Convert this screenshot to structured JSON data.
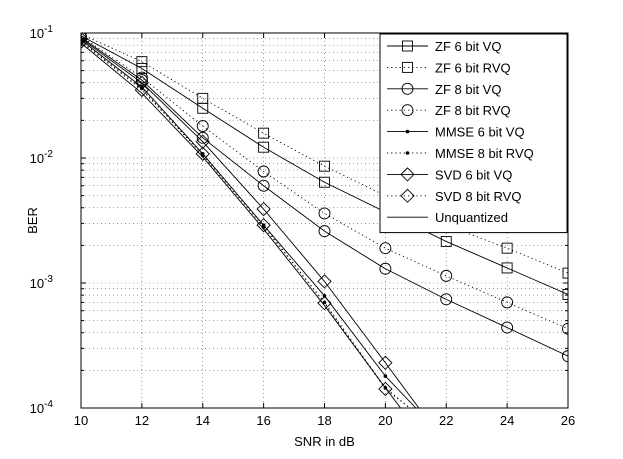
{
  "chart_data": {
    "type": "line",
    "title": "",
    "xlabel": "SNR in dB",
    "ylabel": "BER",
    "xscale": "linear",
    "yscale": "log",
    "xlim": [
      10,
      26
    ],
    "ylim": [
      0.0001,
      0.1
    ],
    "grid": true,
    "legend_position": "top-right",
    "x_ticks": [
      10,
      12,
      14,
      16,
      18,
      20,
      22,
      24,
      26
    ],
    "x_tick_labels": [
      "10",
      "12",
      "14",
      "16",
      "18",
      "20",
      "22",
      "24",
      "26"
    ],
    "y_ticks": [
      0.0001,
      0.001,
      0.01,
      0.1
    ],
    "y_tick_labels": [
      {
        "base": "10",
        "exp": "-4"
      },
      {
        "base": "10",
        "exp": "-3"
      },
      {
        "base": "10",
        "exp": "-2"
      },
      {
        "base": "10",
        "exp": "-1"
      }
    ],
    "series": [
      {
        "name": "ZF 6 bit VQ",
        "line": "solid",
        "marker": "square",
        "x": [
          10,
          12,
          14,
          16,
          18,
          20,
          22,
          24,
          26
        ],
        "y": [
          0.095,
          0.052,
          0.025,
          0.0122,
          0.0064,
          0.0037,
          0.00215,
          0.00132,
          0.00081
        ]
      },
      {
        "name": "ZF 6 bit RVQ",
        "line": "dotted",
        "marker": "square",
        "x": [
          10,
          12,
          14,
          16,
          18,
          20,
          22,
          24,
          26
        ],
        "y": [
          0.098,
          0.059,
          0.03,
          0.0158,
          0.0086,
          0.005,
          0.0029,
          0.0019,
          0.0012
        ]
      },
      {
        "name": "ZF 8 bit VQ",
        "line": "solid",
        "marker": "circle",
        "x": [
          10,
          12,
          14,
          16,
          18,
          20,
          22,
          24,
          26
        ],
        "y": [
          0.092,
          0.042,
          0.0145,
          0.006,
          0.0026,
          0.0013,
          0.00074,
          0.00044,
          0.00026
        ]
      },
      {
        "name": "ZF 8 bit RVQ",
        "line": "dotted",
        "marker": "circle",
        "x": [
          10,
          12,
          14,
          16,
          18,
          20,
          22,
          24,
          26
        ],
        "y": [
          0.094,
          0.044,
          0.018,
          0.0078,
          0.0036,
          0.0019,
          0.00114,
          0.0007,
          0.00043
        ]
      },
      {
        "name": "MMSE 6 bit VQ",
        "line": "solid",
        "marker": "dot",
        "x": [
          10,
          12,
          14,
          16,
          18,
          20,
          21
        ],
        "y": [
          0.088,
          0.037,
          0.0108,
          0.0029,
          0.00079,
          0.00018,
          0.0001
        ]
      },
      {
        "name": "MMSE 8 bit RVQ",
        "line": "dotted",
        "marker": "dot",
        "x": [
          10,
          12,
          14,
          16,
          18,
          20,
          20.8
        ],
        "y": [
          0.086,
          0.036,
          0.0105,
          0.0028,
          0.0007,
          0.000145,
          0.0001
        ]
      },
      {
        "name": "SVD 6 bit VQ",
        "line": "solid",
        "marker": "diamond",
        "x": [
          10,
          12,
          14,
          16,
          18,
          20,
          21.1
        ],
        "y": [
          0.09,
          0.04,
          0.0135,
          0.0039,
          0.00103,
          0.00023,
          0.0001
        ]
      },
      {
        "name": "SVD 8 bit RVQ",
        "line": "dotted",
        "marker": "diamond",
        "x": [
          10,
          12,
          14,
          16,
          18,
          20,
          20.8
        ],
        "y": [
          0.085,
          0.035,
          0.0108,
          0.0029,
          0.00069,
          0.000142,
          0.0001
        ]
      },
      {
        "name": "Unquantized",
        "line": "solid",
        "marker": "none",
        "x": [
          10,
          12,
          14,
          16,
          18,
          20,
          20.5
        ],
        "y": [
          0.083,
          0.033,
          0.0102,
          0.0027,
          0.00066,
          0.000145,
          0.0001
        ]
      }
    ]
  }
}
